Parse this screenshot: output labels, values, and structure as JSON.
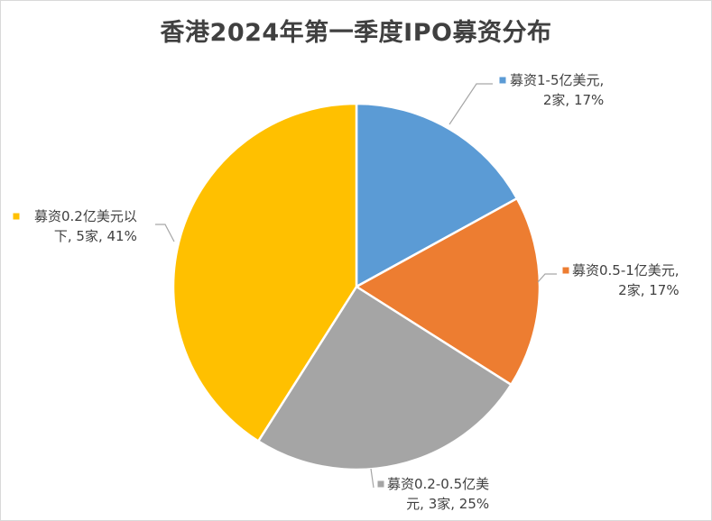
{
  "chart_data": {
    "type": "pie",
    "title": "香港2024年第一季度IPO募资分布",
    "slices": [
      {
        "name": "募资1-5亿美元",
        "count": "2家",
        "percent": 17,
        "color": "#5B9BD5",
        "label_lines": [
          "募资1-5亿美元,",
          "2家, 17%"
        ]
      },
      {
        "name": "募资0.5-1亿美元",
        "count": "2家",
        "percent": 17,
        "color": "#ED7D31",
        "label_lines": [
          "募资0.5-1亿美元,",
          "2家, 17%"
        ]
      },
      {
        "name": "募资0.2-0.5亿美元",
        "count": "3家",
        "percent": 25,
        "color": "#A5A5A5",
        "label_lines": [
          "募资0.2-0.5亿美",
          "元, 3家, 25%"
        ]
      },
      {
        "name": "募资0.2亿美元以下",
        "count": "5家",
        "percent": 41,
        "color": "#FFC000",
        "label_lines": [
          "募资0.2亿美元以",
          "下, 5家, 41%"
        ]
      }
    ],
    "legend": "none"
  }
}
